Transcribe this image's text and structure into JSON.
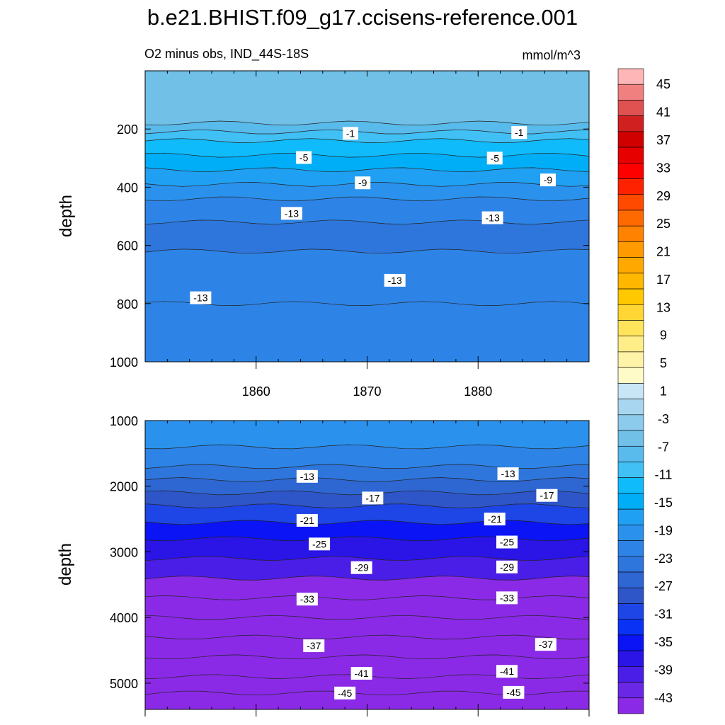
{
  "chart_data": {
    "type": "contour",
    "title": "b.e21.BHIST.f09_g17.ccisens-reference.001",
    "subtitle_left": "O2 minus obs, IND_44S-18S",
    "subtitle_right": "mmol/m^3",
    "colorbar": {
      "tick_labels": [
        "45",
        "41",
        "37",
        "33",
        "29",
        "25",
        "21",
        "17",
        "13",
        "9",
        "5",
        "1",
        "-3",
        "-7",
        "-11",
        "-15",
        "-19",
        "-23",
        "-27",
        "-31",
        "-35",
        "-39",
        "-43"
      ],
      "colors": [
        "#ffb6b6",
        "#f08080",
        "#e05252",
        "#d02020",
        "#d00000",
        "#e60000",
        "#ff0000",
        "#ff2200",
        "#ff4a00",
        "#ff6a00",
        "#ff8200",
        "#ff9a00",
        "#ffa800",
        "#ffb700",
        "#ffc800",
        "#ffd633",
        "#ffe45c",
        "#ffee88",
        "#fff3a8",
        "#fffbc8",
        "#c8e6f5",
        "#a8d6f0",
        "#8ccbec",
        "#70c0e8",
        "#58bbeb",
        "#40c0f5",
        "#10bbfb",
        "#00aef8",
        "#20a0f2",
        "#2a92ec",
        "#2d84e6",
        "#2e76dc",
        "#2e66d2",
        "#2e56c8",
        "#1e45e6",
        "#0a32f5",
        "#0a14f5",
        "#2a14e6",
        "#4a1ee6",
        "#6a28e6",
        "#8a2ae6"
      ]
    },
    "panels": [
      {
        "ylabel": "depth",
        "ylim": [
          1000,
          0
        ],
        "xlim": [
          1850,
          1890
        ],
        "y_ticks": [
          200,
          400,
          600,
          800,
          1000
        ],
        "x_ticks": [
          1860,
          1870,
          1880
        ],
        "levels": [
          {
            "depth": 0,
            "value": 3
          },
          {
            "depth": 180,
            "value": 1
          },
          {
            "depth": 210,
            "value": -1
          },
          {
            "depth": 240,
            "value": -3
          },
          {
            "depth": 290,
            "value": -5
          },
          {
            "depth": 340,
            "value": -7
          },
          {
            "depth": 390,
            "value": -9
          },
          {
            "depth": 440,
            "value": -11
          },
          {
            "depth": 520,
            "value": -13
          },
          {
            "depth": 620,
            "value": -15
          },
          {
            "depth": 800,
            "value": -13
          },
          {
            "depth": 1000,
            "value": -13
          }
        ],
        "contour_labels": [
          {
            "x": 1868.5,
            "depth": 215,
            "text": "-1"
          },
          {
            "x": 1883.7,
            "depth": 212,
            "text": "-1"
          },
          {
            "x": 1864.3,
            "depth": 298,
            "text": "-5"
          },
          {
            "x": 1881.5,
            "depth": 300,
            "text": "-5"
          },
          {
            "x": 1869.6,
            "depth": 385,
            "text": "-9"
          },
          {
            "x": 1886.3,
            "depth": 375,
            "text": "-9"
          },
          {
            "x": 1863.2,
            "depth": 490,
            "text": "-13"
          },
          {
            "x": 1881.3,
            "depth": 505,
            "text": "-13"
          },
          {
            "x": 1855.0,
            "depth": 780,
            "text": "-13"
          },
          {
            "x": 1872.5,
            "depth": 720,
            "text": "-13"
          }
        ]
      },
      {
        "ylabel": "depth",
        "ylim": [
          5400,
          1000
        ],
        "xlim": [
          1850,
          1890
        ],
        "y_ticks": [
          1000,
          2000,
          3000,
          4000,
          5000
        ],
        "levels": [
          {
            "depth": 1000,
            "value": -11
          },
          {
            "depth": 1400,
            "value": -11
          },
          {
            "depth": 1700,
            "value": -13
          },
          {
            "depth": 1900,
            "value": -15
          },
          {
            "depth": 2100,
            "value": -17
          },
          {
            "depth": 2300,
            "value": -19
          },
          {
            "depth": 2550,
            "value": -21
          },
          {
            "depth": 2800,
            "value": -25
          },
          {
            "depth": 3100,
            "value": -27
          },
          {
            "depth": 3400,
            "value": -29
          },
          {
            "depth": 3700,
            "value": -33
          },
          {
            "depth": 4000,
            "value": -35
          },
          {
            "depth": 4300,
            "value": -37
          },
          {
            "depth": 4600,
            "value": -39
          },
          {
            "depth": 4900,
            "value": -41
          },
          {
            "depth": 5150,
            "value": -43
          },
          {
            "depth": 5400,
            "value": -45
          }
        ],
        "contour_labels": [
          {
            "x": 1864.6,
            "depth": 1850,
            "text": "-13"
          },
          {
            "x": 1882.7,
            "depth": 1810,
            "text": "-13"
          },
          {
            "x": 1870.5,
            "depth": 2180,
            "text": "-17"
          },
          {
            "x": 1886.2,
            "depth": 2140,
            "text": "-17"
          },
          {
            "x": 1864.6,
            "depth": 2520,
            "text": "-21"
          },
          {
            "x": 1881.5,
            "depth": 2500,
            "text": "-21"
          },
          {
            "x": 1865.7,
            "depth": 2880,
            "text": "-25"
          },
          {
            "x": 1882.6,
            "depth": 2850,
            "text": "-25"
          },
          {
            "x": 1869.5,
            "depth": 3240,
            "text": "-29"
          },
          {
            "x": 1882.6,
            "depth": 3230,
            "text": "-29"
          },
          {
            "x": 1864.6,
            "depth": 3720,
            "text": "-33"
          },
          {
            "x": 1882.6,
            "depth": 3700,
            "text": "-33"
          },
          {
            "x": 1865.2,
            "depth": 4430,
            "text": "-37"
          },
          {
            "x": 1886.1,
            "depth": 4410,
            "text": "-37"
          },
          {
            "x": 1869.5,
            "depth": 4850,
            "text": "-41"
          },
          {
            "x": 1882.6,
            "depth": 4820,
            "text": "-41"
          },
          {
            "x": 1868.0,
            "depth": 5150,
            "text": "-45"
          },
          {
            "x": 1883.2,
            "depth": 5140,
            "text": "-45"
          }
        ]
      }
    ]
  }
}
